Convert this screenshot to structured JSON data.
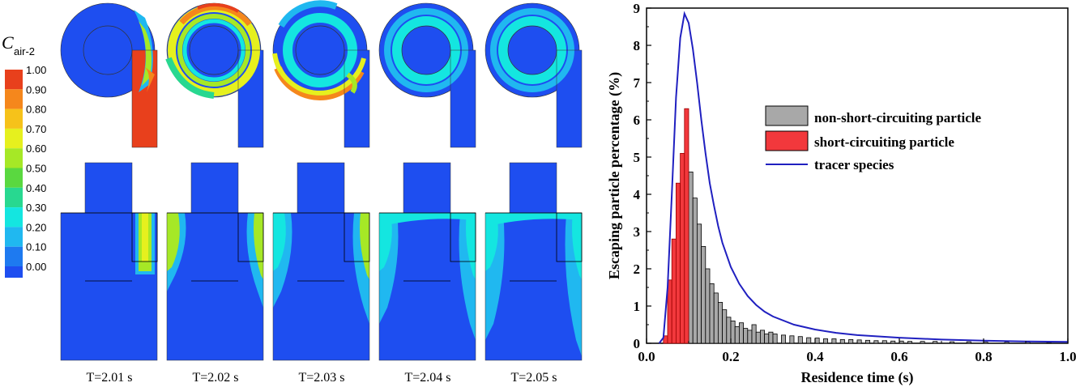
{
  "colorbar": {
    "symbol": "C",
    "subscript": "air-2",
    "ticks": [
      "1.00",
      "0.90",
      "0.80",
      "0.70",
      "0.60",
      "0.50",
      "0.40",
      "0.30",
      "0.20",
      "0.10",
      "0.00"
    ],
    "colors": [
      "#e8401c",
      "#f5871c",
      "#f6c21a",
      "#e6f01e",
      "#a6e826",
      "#5ad840",
      "#28d890",
      "#14e6e0",
      "#20b8f0",
      "#1e7af0",
      "#1e4ef0"
    ]
  },
  "snapshots": [
    "T=2.01 s",
    "T=2.02 s",
    "T=2.03 s",
    "T=2.04 s",
    "T=2.05 s"
  ],
  "chart_data": {
    "type": "bar",
    "xlabel": "Residence time (s)",
    "ylabel": "Escaping particle percentage (%)",
    "xlim": [
      0.0,
      1.0
    ],
    "ylim": [
      0,
      9
    ],
    "xticks": [
      "0.0",
      "0.2",
      "0.4",
      "0.6",
      "0.8",
      "1.0"
    ],
    "yticks": [
      "0",
      "1",
      "2",
      "3",
      "4",
      "5",
      "6",
      "7",
      "8",
      "9"
    ],
    "grid": false,
    "legend_position": "center-right",
    "bin_width": 0.01,
    "series": [
      {
        "name": "non-short-circuiting particle",
        "kind": "bar",
        "color": "#a8a8a8",
        "bin_starts": [
          0.08,
          0.09,
          0.1,
          0.11,
          0.12,
          0.13,
          0.14,
          0.15,
          0.16,
          0.17,
          0.18,
          0.19,
          0.2,
          0.21,
          0.22,
          0.23,
          0.24,
          0.25,
          0.26,
          0.27,
          0.28,
          0.29,
          0.3,
          0.32,
          0.34,
          0.36,
          0.38,
          0.4,
          0.42,
          0.44,
          0.46,
          0.48,
          0.5,
          0.52,
          0.54,
          0.56,
          0.58,
          0.6,
          0.62,
          0.65,
          0.68,
          0.72,
          0.76,
          0.8,
          0.85,
          0.9,
          0.95
        ],
        "values": [
          2.9,
          4.1,
          4.6,
          3.9,
          3.2,
          2.6,
          2.0,
          1.6,
          1.35,
          1.1,
          0.9,
          0.7,
          0.6,
          0.45,
          0.55,
          0.4,
          0.35,
          0.5,
          0.3,
          0.35,
          0.25,
          0.3,
          0.25,
          0.22,
          0.2,
          0.18,
          0.15,
          0.14,
          0.12,
          0.12,
          0.1,
          0.1,
          0.09,
          0.08,
          0.07,
          0.07,
          0.06,
          0.06,
          0.05,
          0.05,
          0.05,
          0.04,
          0.04,
          0.03,
          0.03,
          0.03,
          0.02
        ]
      },
      {
        "name": "short-circuiting particle",
        "kind": "bar",
        "color": "#f2383c",
        "bin_starts": [
          0.04,
          0.05,
          0.06,
          0.07,
          0.08,
          0.09
        ],
        "values": [
          0.2,
          1.7,
          2.8,
          4.3,
          5.1,
          6.3
        ]
      },
      {
        "name": "tracer species",
        "kind": "line",
        "color": "#2020c0",
        "x": [
          0.03,
          0.04,
          0.05,
          0.06,
          0.07,
          0.08,
          0.09,
          0.1,
          0.11,
          0.12,
          0.13,
          0.14,
          0.15,
          0.16,
          0.17,
          0.18,
          0.2,
          0.22,
          0.24,
          0.26,
          0.28,
          0.3,
          0.35,
          0.4,
          0.45,
          0.5,
          0.6,
          0.7,
          0.8,
          0.9,
          1.0
        ],
        "y": [
          0.0,
          0.15,
          1.5,
          4.0,
          6.6,
          8.2,
          8.85,
          8.6,
          7.9,
          7.0,
          6.0,
          5.1,
          4.3,
          3.7,
          3.15,
          2.7,
          2.05,
          1.6,
          1.27,
          1.03,
          0.85,
          0.72,
          0.5,
          0.37,
          0.28,
          0.22,
          0.15,
          0.1,
          0.07,
          0.05,
          0.04
        ]
      }
    ]
  }
}
